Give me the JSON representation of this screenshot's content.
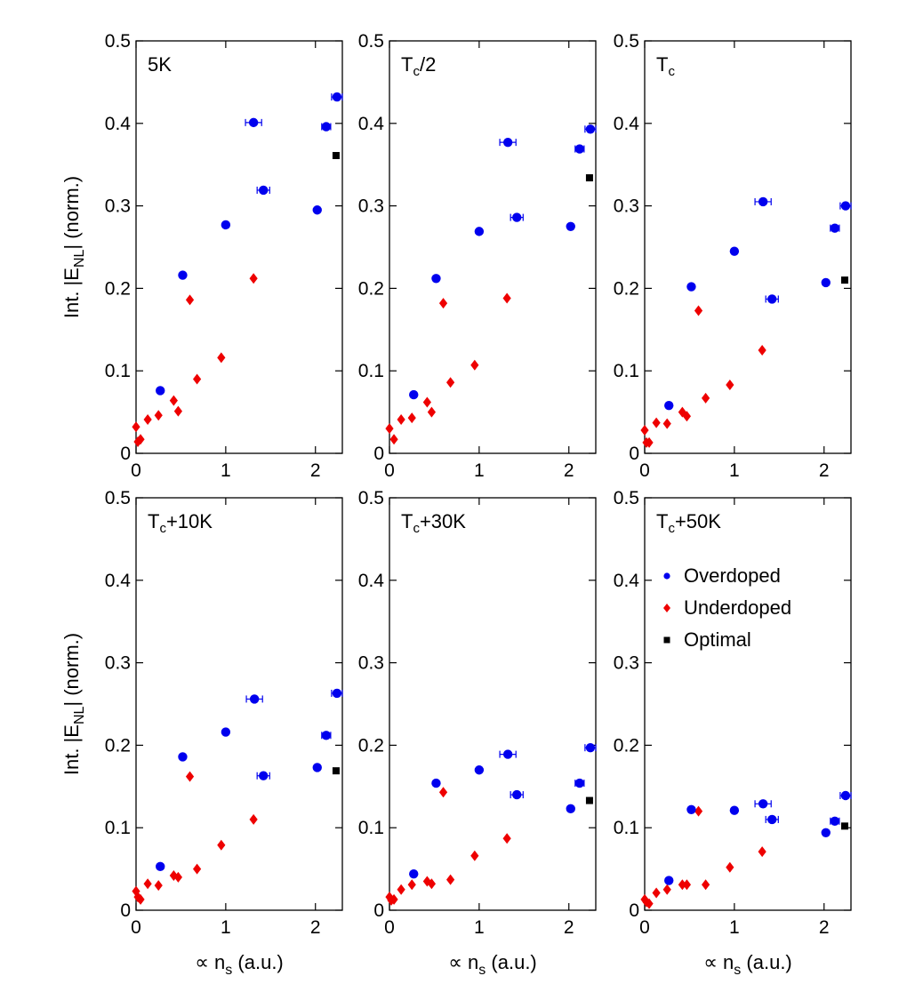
{
  "chart_data": {
    "type": "scatter",
    "shared": {
      "xlabel_prefix": "∝ n",
      "xlabel_sub": "s",
      "xlabel_suffix": " (a.u.)",
      "ylabel_prefix": "Int. |E",
      "ylabel_sub": "NL",
      "ylabel_suffix": "| (norm.)",
      "xlim": [
        0,
        2.3
      ],
      "ylim": [
        0,
        0.5
      ],
      "xticks": [
        0,
        1,
        2
      ],
      "yticks": [
        0,
        0.1,
        0.2,
        0.3,
        0.4,
        0.5
      ],
      "ytick_labels": [
        "0",
        "0.1",
        "0.2",
        "0.3",
        "0.4",
        "0.5"
      ],
      "xtick_labels": [
        "0",
        "1",
        "2"
      ],
      "series_colors": {
        "overdoped": "#0000ee",
        "underdoped": "#ee0000",
        "optimal": "#000000"
      },
      "legend": {
        "position": "upper-middle-left of last panel",
        "entries": [
          "Overdoped",
          "Underdoped",
          "Optimal"
        ]
      }
    },
    "panels": [
      {
        "title_main": "5K",
        "title_sub": "",
        "title_rest": "",
        "overdoped": [
          {
            "x": 0.27,
            "y": 0.076
          },
          {
            "x": 0.52,
            "y": 0.216
          },
          {
            "x": 1.0,
            "y": 0.277
          },
          {
            "x": 1.31,
            "y": 0.401,
            "xerr": 0.09
          },
          {
            "x": 1.42,
            "y": 0.319,
            "xerr": 0.07
          },
          {
            "x": 2.02,
            "y": 0.295
          },
          {
            "x": 2.12,
            "y": 0.396,
            "xerr": 0.05
          },
          {
            "x": 2.24,
            "y": 0.432,
            "xerr": 0.06
          }
        ],
        "underdoped": [
          {
            "x": 0.0,
            "y": 0.032
          },
          {
            "x": 0.02,
            "y": 0.014
          },
          {
            "x": 0.05,
            "y": 0.017
          },
          {
            "x": 0.13,
            "y": 0.041
          },
          {
            "x": 0.25,
            "y": 0.046
          },
          {
            "x": 0.42,
            "y": 0.064
          },
          {
            "x": 0.47,
            "y": 0.051
          },
          {
            "x": 0.6,
            "y": 0.186
          },
          {
            "x": 0.68,
            "y": 0.09
          },
          {
            "x": 0.95,
            "y": 0.116
          },
          {
            "x": 1.31,
            "y": 0.212
          }
        ],
        "optimal": [
          {
            "x": 2.23,
            "y": 0.361
          }
        ]
      },
      {
        "title_main": "T",
        "title_sub": "c",
        "title_rest": "/2",
        "overdoped": [
          {
            "x": 0.27,
            "y": 0.071
          },
          {
            "x": 0.52,
            "y": 0.212
          },
          {
            "x": 1.0,
            "y": 0.269
          },
          {
            "x": 1.32,
            "y": 0.377,
            "xerr": 0.09
          },
          {
            "x": 1.42,
            "y": 0.286,
            "xerr": 0.07
          },
          {
            "x": 2.02,
            "y": 0.275
          },
          {
            "x": 2.12,
            "y": 0.369,
            "xerr": 0.05
          },
          {
            "x": 2.24,
            "y": 0.393,
            "xerr": 0.06
          }
        ],
        "underdoped": [
          {
            "x": 0.0,
            "y": 0.03
          },
          {
            "x": 0.05,
            "y": 0.017
          },
          {
            "x": 0.13,
            "y": 0.041
          },
          {
            "x": 0.25,
            "y": 0.043
          },
          {
            "x": 0.42,
            "y": 0.062
          },
          {
            "x": 0.47,
            "y": 0.05
          },
          {
            "x": 0.6,
            "y": 0.182
          },
          {
            "x": 0.68,
            "y": 0.086
          },
          {
            "x": 0.95,
            "y": 0.107
          },
          {
            "x": 1.31,
            "y": 0.188
          }
        ],
        "optimal": [
          {
            "x": 2.23,
            "y": 0.334
          }
        ]
      },
      {
        "title_main": "T",
        "title_sub": "c",
        "title_rest": "",
        "overdoped": [
          {
            "x": 0.27,
            "y": 0.058
          },
          {
            "x": 0.52,
            "y": 0.202
          },
          {
            "x": 1.0,
            "y": 0.245
          },
          {
            "x": 1.32,
            "y": 0.305,
            "xerr": 0.09
          },
          {
            "x": 1.42,
            "y": 0.187,
            "xerr": 0.07
          },
          {
            "x": 2.02,
            "y": 0.207
          },
          {
            "x": 2.12,
            "y": 0.273,
            "xerr": 0.05
          },
          {
            "x": 2.24,
            "y": 0.3,
            "xerr": 0.06
          }
        ],
        "underdoped": [
          {
            "x": 0.0,
            "y": 0.028
          },
          {
            "x": 0.02,
            "y": 0.013
          },
          {
            "x": 0.05,
            "y": 0.013
          },
          {
            "x": 0.13,
            "y": 0.037
          },
          {
            "x": 0.25,
            "y": 0.036
          },
          {
            "x": 0.42,
            "y": 0.05
          },
          {
            "x": 0.47,
            "y": 0.045
          },
          {
            "x": 0.6,
            "y": 0.173
          },
          {
            "x": 0.68,
            "y": 0.067
          },
          {
            "x": 0.95,
            "y": 0.083
          },
          {
            "x": 1.31,
            "y": 0.125
          }
        ],
        "optimal": [
          {
            "x": 2.23,
            "y": 0.21
          }
        ]
      },
      {
        "title_main": "T",
        "title_sub": "c",
        "title_rest": "+10K",
        "overdoped": [
          {
            "x": 0.27,
            "y": 0.053
          },
          {
            "x": 0.52,
            "y": 0.186
          },
          {
            "x": 1.0,
            "y": 0.216
          },
          {
            "x": 1.32,
            "y": 0.256,
            "xerr": 0.09
          },
          {
            "x": 1.42,
            "y": 0.163,
            "xerr": 0.07
          },
          {
            "x": 2.02,
            "y": 0.173
          },
          {
            "x": 2.12,
            "y": 0.212,
            "xerr": 0.05
          },
          {
            "x": 2.24,
            "y": 0.263,
            "xerr": 0.06
          }
        ],
        "underdoped": [
          {
            "x": 0.0,
            "y": 0.023
          },
          {
            "x": 0.02,
            "y": 0.016
          },
          {
            "x": 0.05,
            "y": 0.013
          },
          {
            "x": 0.13,
            "y": 0.032
          },
          {
            "x": 0.25,
            "y": 0.03
          },
          {
            "x": 0.42,
            "y": 0.042
          },
          {
            "x": 0.47,
            "y": 0.04
          },
          {
            "x": 0.6,
            "y": 0.162
          },
          {
            "x": 0.68,
            "y": 0.05
          },
          {
            "x": 0.95,
            "y": 0.079
          },
          {
            "x": 1.31,
            "y": 0.11
          }
        ],
        "optimal": [
          {
            "x": 2.23,
            "y": 0.169
          }
        ]
      },
      {
        "title_main": "T",
        "title_sub": "c",
        "title_rest": "+30K",
        "overdoped": [
          {
            "x": 0.27,
            "y": 0.044
          },
          {
            "x": 0.52,
            "y": 0.154
          },
          {
            "x": 1.0,
            "y": 0.17
          },
          {
            "x": 1.32,
            "y": 0.189,
            "xerr": 0.09
          },
          {
            "x": 1.42,
            "y": 0.14,
            "xerr": 0.07
          },
          {
            "x": 2.02,
            "y": 0.123
          },
          {
            "x": 2.12,
            "y": 0.154,
            "xerr": 0.05
          },
          {
            "x": 2.24,
            "y": 0.197,
            "xerr": 0.06
          }
        ],
        "underdoped": [
          {
            "x": 0.0,
            "y": 0.016
          },
          {
            "x": 0.02,
            "y": 0.012
          },
          {
            "x": 0.05,
            "y": 0.013
          },
          {
            "x": 0.13,
            "y": 0.025
          },
          {
            "x": 0.25,
            "y": 0.031
          },
          {
            "x": 0.42,
            "y": 0.035
          },
          {
            "x": 0.47,
            "y": 0.032
          },
          {
            "x": 0.6,
            "y": 0.143
          },
          {
            "x": 0.68,
            "y": 0.037
          },
          {
            "x": 0.95,
            "y": 0.066
          },
          {
            "x": 1.31,
            "y": 0.087
          }
        ],
        "optimal": [
          {
            "x": 2.23,
            "y": 0.133
          }
        ]
      },
      {
        "title_main": "T",
        "title_sub": "c",
        "title_rest": "+50K",
        "overdoped": [
          {
            "x": 0.27,
            "y": 0.036
          },
          {
            "x": 0.52,
            "y": 0.122
          },
          {
            "x": 1.0,
            "y": 0.121
          },
          {
            "x": 1.32,
            "y": 0.129,
            "xerr": 0.09
          },
          {
            "x": 1.42,
            "y": 0.11,
            "xerr": 0.07
          },
          {
            "x": 2.02,
            "y": 0.094
          },
          {
            "x": 2.12,
            "y": 0.108,
            "xerr": 0.05
          },
          {
            "x": 2.24,
            "y": 0.139,
            "xerr": 0.06
          }
        ],
        "underdoped": [
          {
            "x": 0.0,
            "y": 0.013
          },
          {
            "x": 0.02,
            "y": 0.01
          },
          {
            "x": 0.05,
            "y": 0.008
          },
          {
            "x": 0.13,
            "y": 0.021
          },
          {
            "x": 0.25,
            "y": 0.025
          },
          {
            "x": 0.42,
            "y": 0.031
          },
          {
            "x": 0.47,
            "y": 0.031
          },
          {
            "x": 0.6,
            "y": 0.12
          },
          {
            "x": 0.68,
            "y": 0.031
          },
          {
            "x": 0.95,
            "y": 0.052
          },
          {
            "x": 1.31,
            "y": 0.071
          }
        ],
        "optimal": [
          {
            "x": 2.23,
            "y": 0.102
          }
        ]
      }
    ]
  }
}
